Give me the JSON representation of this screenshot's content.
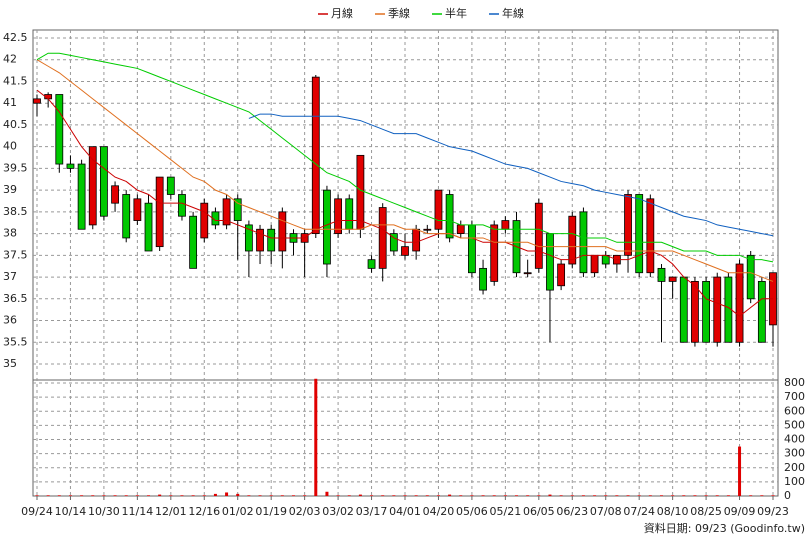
{
  "chart_data": {
    "type": "candlestick",
    "categories": [
      "09/24",
      null,
      null,
      "10/14",
      null,
      null,
      "10/30",
      null,
      null,
      "11/14",
      null,
      null,
      "12/01",
      null,
      null,
      "12/16",
      null,
      null,
      "01/02",
      null,
      null,
      "01/19",
      null,
      null,
      "02/03",
      null,
      null,
      "03/02",
      null,
      null,
      "03/17",
      null,
      null,
      "04/01",
      null,
      null,
      "04/20",
      null,
      null,
      "05/06",
      null,
      null,
      "05/21",
      null,
      null,
      "06/05",
      null,
      null,
      "06/23",
      null,
      null,
      "07/08",
      null,
      null,
      "07/24",
      null,
      null,
      "08/10",
      null,
      null,
      "08/25",
      null,
      null,
      "09/09",
      null,
      null,
      "09/23"
    ],
    "open": [
      41.0,
      41.1,
      41.2,
      39.6,
      39.6,
      38.2,
      40.0,
      38.7,
      38.9,
      38.3,
      38.7,
      37.7,
      39.3,
      38.9,
      38.4,
      37.9,
      38.5,
      38.2,
      38.8,
      38.2,
      37.6,
      38.1,
      37.6,
      38.0,
      37.8,
      38.0,
      39.0,
      38.0,
      38.8,
      38.1,
      37.4,
      37.2,
      38.0,
      37.5,
      37.6,
      38.1,
      38.1,
      38.9,
      38.0,
      38.2,
      37.2,
      36.9,
      38.1,
      38.3,
      37.1,
      37.2,
      38.0,
      36.8,
      37.3,
      38.5,
      37.1,
      37.5,
      37.3,
      37.5,
      38.9,
      37.1,
      37.2,
      36.9,
      37.0,
      35.5,
      36.9,
      35.5,
      37.0,
      35.5,
      37.5,
      36.9,
      35.9
    ],
    "high": [
      41.2,
      41.25,
      41.2,
      39.8,
      39.7,
      40.0,
      40.0,
      39.2,
      39.0,
      38.9,
      38.9,
      39.3,
      39.3,
      39.0,
      38.5,
      38.8,
      38.6,
      38.9,
      38.9,
      38.3,
      38.2,
      38.2,
      38.6,
      38.1,
      38.1,
      41.65,
      39.1,
      38.9,
      38.9,
      39.8,
      37.5,
      38.7,
      38.1,
      38.0,
      38.2,
      38.2,
      39.0,
      39.0,
      38.3,
      38.3,
      37.4,
      38.3,
      38.4,
      38.5,
      37.4,
      38.8,
      38.0,
      37.4,
      38.5,
      38.6,
      37.5,
      37.6,
      37.5,
      39.0,
      38.9,
      38.9,
      37.3,
      37.0,
      37.0,
      37.0,
      37.0,
      37.1,
      37.1,
      37.4,
      37.6,
      37.0,
      37.1
    ],
    "low": [
      40.7,
      40.9,
      39.4,
      39.4,
      38.1,
      38.1,
      38.3,
      38.5,
      37.8,
      38.2,
      37.6,
      37.6,
      38.8,
      38.3,
      37.2,
      37.8,
      38.1,
      38.1,
      37.4,
      37.0,
      37.3,
      37.3,
      37.2,
      37.5,
      37.0,
      37.9,
      37.0,
      37.9,
      38.0,
      37.9,
      37.1,
      36.9,
      37.5,
      37.4,
      37.4,
      38.0,
      37.9,
      37.8,
      37.9,
      37.0,
      36.6,
      36.8,
      38.0,
      37.0,
      37.0,
      37.1,
      35.5,
      36.7,
      37.2,
      37.0,
      37.0,
      37.2,
      37.1,
      37.1,
      37.0,
      37.0,
      35.5,
      36.5,
      35.5,
      35.4,
      35.5,
      35.4,
      35.5,
      35.4,
      36.4,
      35.5,
      35.4
    ],
    "close": [
      41.1,
      41.2,
      39.6,
      39.5,
      38.1,
      40.0,
      38.4,
      39.1,
      37.9,
      38.8,
      37.6,
      39.3,
      38.9,
      38.4,
      37.2,
      38.7,
      38.2,
      38.8,
      38.3,
      37.6,
      38.1,
      37.6,
      38.5,
      37.8,
      38.0,
      41.6,
      37.3,
      38.8,
      38.1,
      39.8,
      37.2,
      38.6,
      37.6,
      37.7,
      38.1,
      38.1,
      39.0,
      37.9,
      38.2,
      37.1,
      36.7,
      38.2,
      38.3,
      37.1,
      37.1,
      38.7,
      36.7,
      37.3,
      38.4,
      37.1,
      37.5,
      37.3,
      37.5,
      38.9,
      37.1,
      38.8,
      36.9,
      37.0,
      35.5,
      36.9,
      35.5,
      37.0,
      35.5,
      37.3,
      36.5,
      35.5,
      37.1
    ],
    "up_color": "#e00000",
    "down_color": "#00c800",
    "ylim": [
      35,
      42.5
    ],
    "yticks": [
      35,
      35.5,
      36,
      36.5,
      37,
      37.5,
      38,
      38.5,
      39,
      39.5,
      40,
      40.5,
      41,
      41.5,
      42,
      42.5
    ],
    "grid": true,
    "moving_averages": [
      {
        "name": "月線",
        "color": "#cc0000",
        "values": [
          41.3,
          41.1,
          40.8,
          40.4,
          40.0,
          39.7,
          39.5,
          39.3,
          39.2,
          39.0,
          38.9,
          38.7,
          38.7,
          38.7,
          38.6,
          38.5,
          38.3,
          38.3,
          38.2,
          38.1,
          38.0,
          37.9,
          37.9,
          37.9,
          37.9,
          38.1,
          38.2,
          38.3,
          38.3,
          38.3,
          38.2,
          38.1,
          37.9,
          37.8,
          37.8,
          37.9,
          38.0,
          38.0,
          37.9,
          37.9,
          37.8,
          37.8,
          37.8,
          37.7,
          37.6,
          37.6,
          37.5,
          37.4,
          37.4,
          37.5,
          37.5,
          37.5,
          37.4,
          37.4,
          37.5,
          37.6,
          37.5,
          37.3,
          37.0,
          36.8,
          36.5,
          36.4,
          36.3,
          36.1,
          36.3,
          36.5,
          36.5
        ]
      },
      {
        "name": "季線",
        "color": "#e07020",
        "values": [
          42.0,
          41.85,
          41.7,
          41.5,
          41.3,
          41.1,
          40.9,
          40.7,
          40.5,
          40.3,
          40.1,
          39.9,
          39.7,
          39.5,
          39.3,
          39.2,
          39.0,
          38.9,
          38.7,
          38.6,
          38.5,
          38.4,
          38.3,
          38.2,
          38.1,
          38.1,
          38.1,
          38.1,
          38.1,
          38.1,
          38.2,
          38.2,
          38.2,
          38.1,
          38.1,
          38.0,
          38.0,
          38.0,
          37.9,
          37.9,
          37.9,
          37.8,
          37.8,
          37.8,
          37.8,
          37.7,
          37.7,
          37.7,
          37.7,
          37.7,
          37.7,
          37.7,
          37.6,
          37.6,
          37.6,
          37.6,
          37.6,
          37.6,
          37.5,
          37.4,
          37.3,
          37.2,
          37.1,
          37.1,
          37.1,
          37.0,
          36.9
        ]
      },
      {
        "name": "半年",
        "color": "#00cc00",
        "values": [
          42.0,
          42.15,
          42.15,
          42.1,
          42.05,
          42.0,
          41.95,
          41.9,
          41.85,
          41.8,
          41.7,
          41.6,
          41.5,
          41.4,
          41.3,
          41.2,
          41.1,
          41.0,
          40.9,
          40.8,
          40.6,
          40.4,
          40.2,
          40.0,
          39.8,
          39.6,
          39.4,
          39.3,
          39.2,
          39.0,
          38.9,
          38.8,
          38.7,
          38.6,
          38.5,
          38.4,
          38.3,
          38.3,
          38.2,
          38.2,
          38.2,
          38.1,
          38.1,
          38.1,
          38.1,
          38.1,
          38.0,
          38.0,
          38.0,
          37.9,
          37.9,
          37.9,
          37.8,
          37.8,
          37.8,
          37.8,
          37.8,
          37.7,
          37.6,
          37.6,
          37.6,
          37.5,
          37.5,
          37.5,
          37.4,
          37.4,
          37.35
        ]
      },
      {
        "name": "年線",
        "color": "#1060c0",
        "values": [
          null,
          null,
          null,
          null,
          null,
          null,
          null,
          null,
          null,
          null,
          null,
          null,
          null,
          null,
          null,
          null,
          null,
          null,
          null,
          40.65,
          40.75,
          40.75,
          40.7,
          40.7,
          40.7,
          40.7,
          40.7,
          40.7,
          40.65,
          40.6,
          40.5,
          40.4,
          40.3,
          40.3,
          40.3,
          40.2,
          40.1,
          40.0,
          39.95,
          39.9,
          39.8,
          39.7,
          39.6,
          39.55,
          39.5,
          39.4,
          39.3,
          39.2,
          39.15,
          39.1,
          39.0,
          38.95,
          38.9,
          38.85,
          38.8,
          38.7,
          38.6,
          38.5,
          38.4,
          38.35,
          38.3,
          38.2,
          38.15,
          38.1,
          38.05,
          38.0,
          37.95
        ]
      }
    ],
    "volume": {
      "color": "#e00000",
      "ylim": [
        0,
        800
      ],
      "yticks": [
        0,
        100,
        200,
        300,
        400,
        500,
        600,
        700,
        800
      ],
      "values": [
        5,
        5,
        5,
        5,
        5,
        5,
        5,
        5,
        5,
        5,
        5,
        10,
        5,
        5,
        5,
        5,
        15,
        25,
        15,
        5,
        5,
        5,
        5,
        5,
        5,
        830,
        30,
        5,
        5,
        10,
        5,
        5,
        5,
        5,
        5,
        5,
        5,
        10,
        5,
        5,
        5,
        5,
        5,
        5,
        5,
        5,
        10,
        5,
        5,
        5,
        5,
        5,
        5,
        5,
        5,
        5,
        5,
        5,
        5,
        5,
        5,
        5,
        5,
        350,
        5,
        5,
        5
      ]
    },
    "source": "資料日期: 09/23 (Goodinfo.tw)"
  }
}
